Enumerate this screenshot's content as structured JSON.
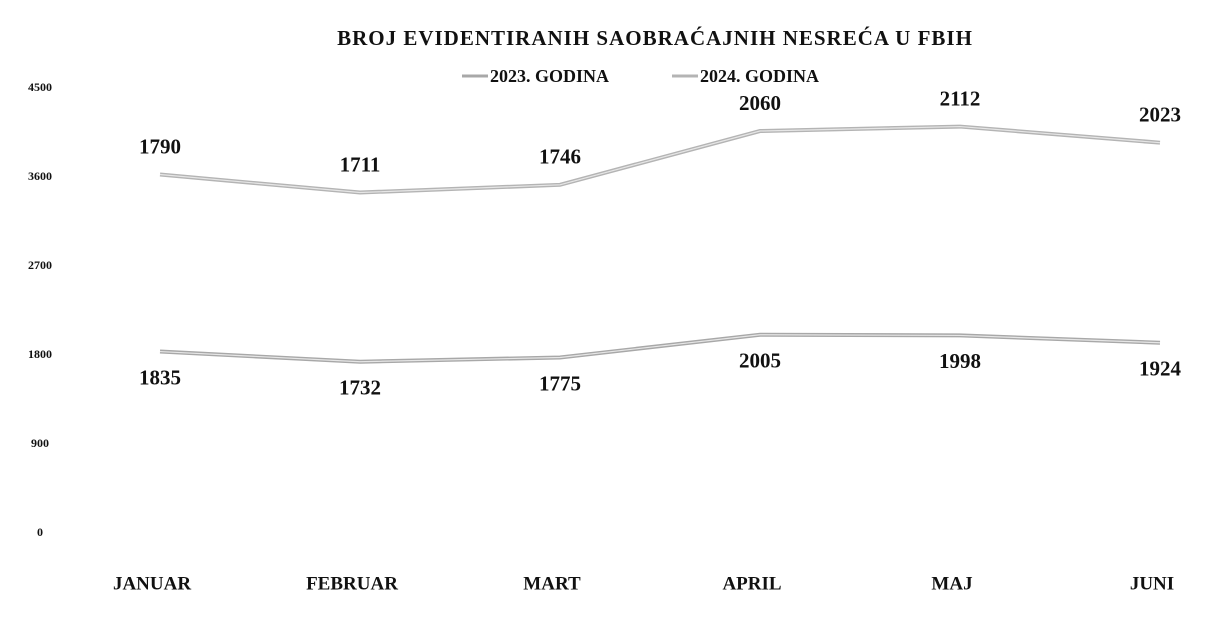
{
  "chart_data": {
    "type": "line",
    "stacked": true,
    "title": "BROJ EVIDENTIRANIH  SAOBRAĆAJNIH NESREĆA U FBIH",
    "categories": [
      "JANUAR",
      "FEBRUAR",
      "MART",
      "APRIL",
      "MAJ",
      "JUNI"
    ],
    "series": [
      {
        "name": "2023. GODINA",
        "color": "#a8a8a8",
        "values": [
          1835,
          1732,
          1775,
          2005,
          1998,
          1924
        ]
      },
      {
        "name": "2024. GODINA",
        "color": "#b4b4b4",
        "values": [
          1790,
          1711,
          1746,
          2060,
          2112,
          2023
        ]
      }
    ],
    "ylim": [
      0,
      4500
    ],
    "yticks": [
      0,
      900,
      1800,
      2700,
      3600,
      4500
    ],
    "grid": false
  }
}
